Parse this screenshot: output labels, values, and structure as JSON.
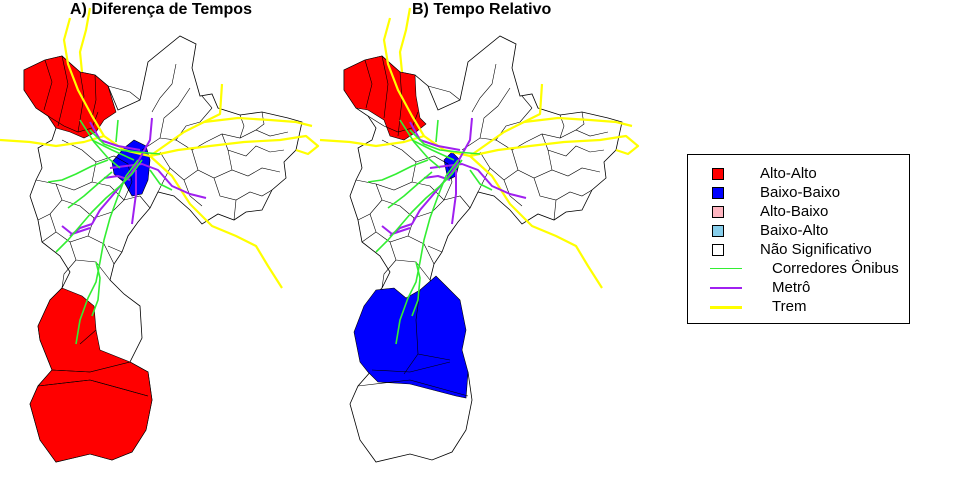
{
  "panels": [
    {
      "id": "a",
      "title": "A) Diferença de Tempos"
    },
    {
      "id": "b",
      "title": "B) Tempo Relativo"
    }
  ],
  "legend": {
    "items": [
      {
        "label": "Alto-Alto",
        "kind": "fill",
        "color": "#ff0000"
      },
      {
        "label": "Baixo-Baixo",
        "kind": "fill",
        "color": "#0000ff"
      },
      {
        "label": "Alto-Baixo",
        "kind": "fill",
        "color": "#ffb6c1"
      },
      {
        "label": "Baixo-Alto",
        "kind": "fill",
        "color": "#87ceeb"
      },
      {
        "label": "Não Significativo",
        "kind": "fill",
        "color": "#ffffff"
      },
      {
        "label": "Corredores Ônibus",
        "kind": "line",
        "color": "#33ee33"
      },
      {
        "label": "Metrô",
        "kind": "line",
        "color": "#a020f0"
      },
      {
        "label": "Trem",
        "kind": "line",
        "color": "#ffff00"
      }
    ]
  },
  "colors": {
    "alto_alto": "#ff0000",
    "baixo_baixo": "#0000ff",
    "nao_significativo": "#ffffff",
    "border": "#000000",
    "bus": "#33ee33",
    "metro": "#a020f0",
    "train": "#ffff00"
  }
}
